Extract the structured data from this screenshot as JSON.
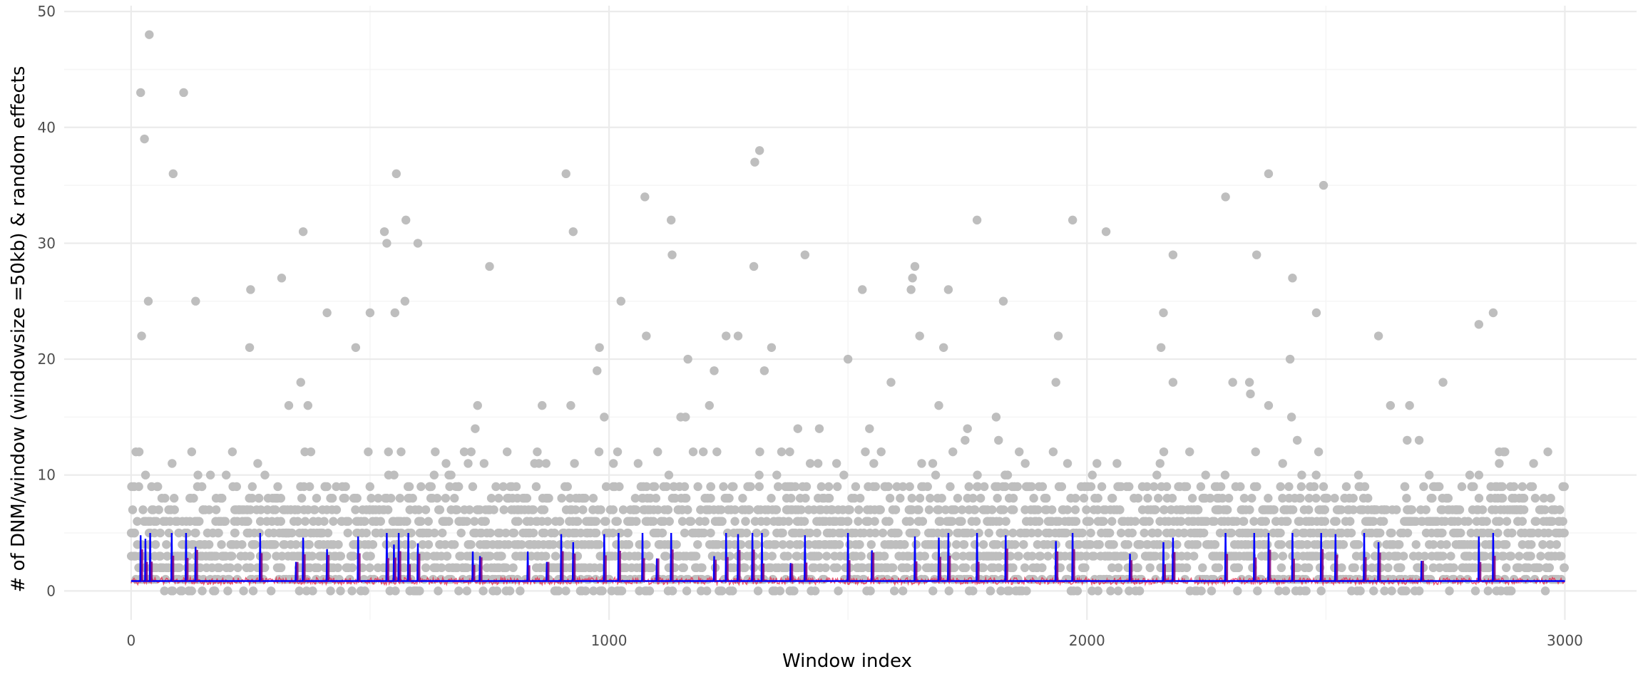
{
  "chart_data": {
    "type": "scatter",
    "title": "",
    "xlabel": "Window index",
    "ylabel": "# of DNM/window (windowsize =50kb) & random effects",
    "xlim": [
      -140,
      3150
    ],
    "ylim": [
      -2.5,
      50.5
    ],
    "x_ticks": [
      0,
      1000,
      2000,
      3000
    ],
    "x_tick_labels": [
      "0",
      "1000",
      "2000",
      "3000"
    ],
    "y_ticks": [
      0,
      10,
      20,
      30,
      40,
      50
    ],
    "y_tick_labels": [
      "0",
      "10",
      "20",
      "30",
      "40",
      "50"
    ],
    "grid": true,
    "legend": "none",
    "colors": {
      "points": "#bebebe",
      "blue_line": "#0000ff",
      "red_line": "#e8294a",
      "overlap": "#800080",
      "grid_major": "#ebebeb",
      "grid_minor": "#f5f5f5"
    },
    "n_windows": 3000,
    "baseline_level": 0.85,
    "outlier_points": [
      {
        "x": 20,
        "y": 43
      },
      {
        "x": 28,
        "y": 39
      },
      {
        "x": 38,
        "y": 48
      },
      {
        "x": 36,
        "y": 25
      },
      {
        "x": 22,
        "y": 22
      },
      {
        "x": 110,
        "y": 43
      },
      {
        "x": 88,
        "y": 36
      },
      {
        "x": 135,
        "y": 25
      },
      {
        "x": 250,
        "y": 26
      },
      {
        "x": 248,
        "y": 21
      },
      {
        "x": 315,
        "y": 27
      },
      {
        "x": 360,
        "y": 31
      },
      {
        "x": 355,
        "y": 18
      },
      {
        "x": 330,
        "y": 16
      },
      {
        "x": 370,
        "y": 16
      },
      {
        "x": 410,
        "y": 24
      },
      {
        "x": 470,
        "y": 21
      },
      {
        "x": 500,
        "y": 24
      },
      {
        "x": 530,
        "y": 31
      },
      {
        "x": 535,
        "y": 30
      },
      {
        "x": 555,
        "y": 36
      },
      {
        "x": 552,
        "y": 24
      },
      {
        "x": 575,
        "y": 32
      },
      {
        "x": 573,
        "y": 25
      },
      {
        "x": 600,
        "y": 30
      },
      {
        "x": 750,
        "y": 28
      },
      {
        "x": 725,
        "y": 16
      },
      {
        "x": 720,
        "y": 14
      },
      {
        "x": 860,
        "y": 16
      },
      {
        "x": 910,
        "y": 36
      },
      {
        "x": 925,
        "y": 31
      },
      {
        "x": 920,
        "y": 16
      },
      {
        "x": 975,
        "y": 19
      },
      {
        "x": 980,
        "y": 21
      },
      {
        "x": 990,
        "y": 15
      },
      {
        "x": 1025,
        "y": 25
      },
      {
        "x": 1075,
        "y": 34
      },
      {
        "x": 1078,
        "y": 22
      },
      {
        "x": 1130,
        "y": 32
      },
      {
        "x": 1132,
        "y": 29
      },
      {
        "x": 1165,
        "y": 20
      },
      {
        "x": 1150,
        "y": 15
      },
      {
        "x": 1160,
        "y": 15
      },
      {
        "x": 1210,
        "y": 16
      },
      {
        "x": 1220,
        "y": 19
      },
      {
        "x": 1245,
        "y": 22
      },
      {
        "x": 1270,
        "y": 22
      },
      {
        "x": 1305,
        "y": 37
      },
      {
        "x": 1315,
        "y": 38
      },
      {
        "x": 1303,
        "y": 28
      },
      {
        "x": 1325,
        "y": 19
      },
      {
        "x": 1340,
        "y": 21
      },
      {
        "x": 1410,
        "y": 29
      },
      {
        "x": 1395,
        "y": 14
      },
      {
        "x": 1440,
        "y": 14
      },
      {
        "x": 1500,
        "y": 20
      },
      {
        "x": 1530,
        "y": 26
      },
      {
        "x": 1545,
        "y": 14
      },
      {
        "x": 1590,
        "y": 18
      },
      {
        "x": 1635,
        "y": 27
      },
      {
        "x": 1640,
        "y": 28
      },
      {
        "x": 1632,
        "y": 26
      },
      {
        "x": 1650,
        "y": 22
      },
      {
        "x": 1700,
        "y": 21
      },
      {
        "x": 1710,
        "y": 26
      },
      {
        "x": 1690,
        "y": 16
      },
      {
        "x": 1770,
        "y": 32
      },
      {
        "x": 1750,
        "y": 14
      },
      {
        "x": 1745,
        "y": 13
      },
      {
        "x": 1810,
        "y": 15
      },
      {
        "x": 1825,
        "y": 25
      },
      {
        "x": 1815,
        "y": 13
      },
      {
        "x": 1940,
        "y": 22
      },
      {
        "x": 1935,
        "y": 18
      },
      {
        "x": 1970,
        "y": 32
      },
      {
        "x": 2040,
        "y": 31
      },
      {
        "x": 2160,
        "y": 24
      },
      {
        "x": 2155,
        "y": 21
      },
      {
        "x": 2180,
        "y": 29
      },
      {
        "x": 2180,
        "y": 18
      },
      {
        "x": 2290,
        "y": 34
      },
      {
        "x": 2305,
        "y": 18
      },
      {
        "x": 2340,
        "y": 18
      },
      {
        "x": 2342,
        "y": 17
      },
      {
        "x": 2355,
        "y": 29
      },
      {
        "x": 2380,
        "y": 36
      },
      {
        "x": 2380,
        "y": 16
      },
      {
        "x": 2430,
        "y": 27
      },
      {
        "x": 2425,
        "y": 20
      },
      {
        "x": 2428,
        "y": 15
      },
      {
        "x": 2440,
        "y": 13
      },
      {
        "x": 2480,
        "y": 24
      },
      {
        "x": 2495,
        "y": 35
      },
      {
        "x": 2610,
        "y": 22
      },
      {
        "x": 2635,
        "y": 16
      },
      {
        "x": 2675,
        "y": 16
      },
      {
        "x": 2670,
        "y": 13
      },
      {
        "x": 2695,
        "y": 13
      },
      {
        "x": 2745,
        "y": 18
      },
      {
        "x": 2820,
        "y": 23
      },
      {
        "x": 2850,
        "y": 24
      }
    ],
    "blue_spikes": [
      {
        "x": 20,
        "y": 4.8
      },
      {
        "x": 30,
        "y": 4.5
      },
      {
        "x": 40,
        "y": 5
      },
      {
        "x": 85,
        "y": 5
      },
      {
        "x": 115,
        "y": 5
      },
      {
        "x": 135,
        "y": 3.8
      },
      {
        "x": 270,
        "y": 5
      },
      {
        "x": 345,
        "y": 2.5
      },
      {
        "x": 360,
        "y": 4.6
      },
      {
        "x": 410,
        "y": 3.6
      },
      {
        "x": 475,
        "y": 4.7
      },
      {
        "x": 535,
        "y": 5
      },
      {
        "x": 550,
        "y": 4
      },
      {
        "x": 560,
        "y": 5
      },
      {
        "x": 580,
        "y": 5
      },
      {
        "x": 600,
        "y": 4.1
      },
      {
        "x": 715,
        "y": 3.4
      },
      {
        "x": 730,
        "y": 3
      },
      {
        "x": 830,
        "y": 3.4
      },
      {
        "x": 870,
        "y": 2.5
      },
      {
        "x": 900,
        "y": 4.9
      },
      {
        "x": 925,
        "y": 4.2
      },
      {
        "x": 990,
        "y": 4.9
      },
      {
        "x": 1020,
        "y": 5
      },
      {
        "x": 1070,
        "y": 5
      },
      {
        "x": 1100,
        "y": 2.8
      },
      {
        "x": 1130,
        "y": 5
      },
      {
        "x": 1220,
        "y": 3
      },
      {
        "x": 1245,
        "y": 5
      },
      {
        "x": 1270,
        "y": 4.9
      },
      {
        "x": 1300,
        "y": 5
      },
      {
        "x": 1320,
        "y": 5
      },
      {
        "x": 1380,
        "y": 2.4
      },
      {
        "x": 1410,
        "y": 4.8
      },
      {
        "x": 1500,
        "y": 5
      },
      {
        "x": 1550,
        "y": 3.5
      },
      {
        "x": 1640,
        "y": 4.7
      },
      {
        "x": 1690,
        "y": 4.6
      },
      {
        "x": 1710,
        "y": 5
      },
      {
        "x": 1770,
        "y": 5
      },
      {
        "x": 1830,
        "y": 4.8
      },
      {
        "x": 1935,
        "y": 4.3
      },
      {
        "x": 1970,
        "y": 5
      },
      {
        "x": 2090,
        "y": 3.2
      },
      {
        "x": 2160,
        "y": 4.2
      },
      {
        "x": 2180,
        "y": 4.6
      },
      {
        "x": 2290,
        "y": 5
      },
      {
        "x": 2350,
        "y": 5
      },
      {
        "x": 2380,
        "y": 5
      },
      {
        "x": 2430,
        "y": 5
      },
      {
        "x": 2490,
        "y": 5
      },
      {
        "x": 2520,
        "y": 4.9
      },
      {
        "x": 2580,
        "y": 5
      },
      {
        "x": 2610,
        "y": 4.2
      },
      {
        "x": 2700,
        "y": 2.6
      },
      {
        "x": 2820,
        "y": 4.7
      },
      {
        "x": 2850,
        "y": 5
      }
    ]
  }
}
